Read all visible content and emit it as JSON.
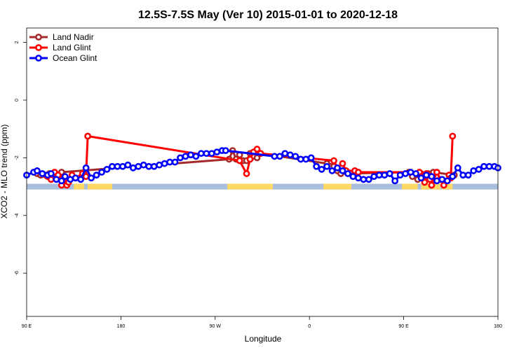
{
  "chart_data": {
    "type": "line",
    "title": "12.5S-7.5S May (Ver 10)   2015-01-01 to 2020-12-18",
    "xlabel": "Longitude",
    "ylabel": "XCO2 - MLO trend (ppm)",
    "xlim": [
      -90,
      180
    ],
    "ylim": [
      -7.5,
      2.5
    ],
    "x_ticks": [
      {
        "value": -90,
        "label": "90 E"
      },
      {
        "value": -36,
        "label": "180"
      },
      {
        "value": 18,
        "label": "90 W"
      },
      {
        "value": 72,
        "label": "0"
      },
      {
        "value": 126,
        "label": "90 E"
      },
      {
        "value": 180,
        "label": "180"
      }
    ],
    "y_ticks": [
      {
        "value": 2,
        "label": "2"
      },
      {
        "value": 0,
        "label": "0"
      },
      {
        "value": -2,
        "label": "-2"
      },
      {
        "value": -4,
        "label": "-4"
      },
      {
        "value": -6,
        "label": "-6"
      }
    ],
    "land_band": {
      "y_range": [
        -3.1,
        -2.9
      ],
      "ocean_color": "#a9bfdb",
      "land_color": "#ffd966",
      "land_segments": [
        [
          25,
          51
        ],
        [
          80,
          96
        ],
        [
          -63,
          -57
        ],
        [
          -55,
          -50
        ],
        [
          -52,
          -44
        ],
        [
          -46,
          -41
        ],
        [
          125,
          134
        ],
        [
          136,
          141
        ],
        [
          142,
          147
        ],
        [
          148,
          154
        ]
      ]
    },
    "series": [
      {
        "name": "Land Nadir",
        "color": "#a52a2a",
        "x": [
          -84,
          -82,
          -79,
          -77,
          -70,
          26,
          28,
          30,
          32,
          34,
          36,
          38,
          39,
          40,
          42,
          44,
          82,
          84,
          86,
          88,
          90,
          129,
          131,
          134,
          136,
          140,
          143,
          155
        ],
        "y": [
          -2.55,
          -2.6,
          -2.6,
          -2.55,
          -2.5,
          -2.05,
          -1.75,
          -2.05,
          -1.9,
          -2.1,
          -2.1,
          -1.85,
          -1.9,
          -1.95,
          -2.0,
          -1.85,
          -2.2,
          -2.3,
          -2.3,
          -2.45,
          -2.55,
          -2.5,
          -2.65,
          -2.75,
          -2.55,
          -2.55,
          -2.5,
          -2.6
        ]
      },
      {
        "name": "Land Glint",
        "color": "#ff0000",
        "x": [
          -78,
          -76,
          -74,
          -73,
          -72,
          -70,
          -69,
          -67,
          -66,
          -64,
          -62,
          -58,
          -56,
          -55,
          32,
          36,
          38,
          40,
          42,
          44,
          86,
          88,
          91,
          93,
          98,
          100,
          135,
          136,
          138,
          139,
          141,
          142,
          145,
          147,
          149,
          152,
          153,
          154
        ],
        "y": [
          -2.65,
          -2.75,
          -2.5,
          -2.7,
          -2.6,
          -2.95,
          -2.7,
          -2.95,
          -2.85,
          -2.6,
          -2.7,
          -2.55,
          -2.65,
          -1.25,
          -2.1,
          -2.55,
          -2.05,
          -1.8,
          -1.7,
          -1.85,
          -2.1,
          -2.35,
          -2.2,
          -2.45,
          -2.45,
          -2.5,
          -2.5,
          -2.65,
          -2.85,
          -2.55,
          -2.75,
          -2.95,
          -2.5,
          -2.75,
          -2.95,
          -2.6,
          -2.7,
          -1.25
        ]
      },
      {
        "name": "Ocean Glint",
        "color": "#0000ff",
        "x": [
          -90,
          -86,
          -84,
          -81,
          -78,
          -76,
          -73,
          -70,
          -68,
          -65,
          -62,
          -59,
          -56,
          -53,
          -50,
          -47,
          -44,
          -41,
          -38,
          -35,
          -32,
          -29,
          -26,
          -23,
          -20,
          -17,
          -14,
          -11,
          -8,
          -5,
          -2,
          1,
          4,
          7,
          10,
          13,
          16,
          19,
          22,
          24,
          52,
          55,
          58,
          61,
          64,
          67,
          70,
          73,
          76,
          79,
          82,
          85,
          88,
          91,
          94,
          97,
          100,
          103,
          106,
          109,
          112,
          115,
          118,
          121,
          124,
          127,
          130,
          133,
          136,
          139,
          142,
          145,
          148,
          151,
          154,
          157,
          160,
          163,
          166,
          169,
          172,
          175,
          178,
          180
        ],
        "y": [
          -2.6,
          -2.5,
          -2.45,
          -2.55,
          -2.6,
          -2.55,
          -2.75,
          -2.8,
          -2.65,
          -2.75,
          -2.7,
          -2.75,
          -2.35,
          -2.7,
          -2.6,
          -2.5,
          -2.4,
          -2.3,
          -2.3,
          -2.3,
          -2.25,
          -2.35,
          -2.3,
          -2.25,
          -2.3,
          -2.3,
          -2.25,
          -2.2,
          -2.15,
          -2.15,
          -2.0,
          -1.95,
          -1.9,
          -1.95,
          -1.85,
          -1.85,
          -1.85,
          -1.8,
          -1.75,
          -1.75,
          -1.95,
          -1.95,
          -1.85,
          -1.9,
          -1.95,
          -2.05,
          -2.05,
          -2.0,
          -2.3,
          -2.4,
          -2.3,
          -2.45,
          -2.35,
          -2.45,
          -2.55,
          -2.65,
          -2.7,
          -2.75,
          -2.75,
          -2.65,
          -2.6,
          -2.6,
          -2.55,
          -2.8,
          -2.6,
          -2.55,
          -2.5,
          -2.55,
          -2.7,
          -2.6,
          -2.65,
          -2.8,
          -2.75,
          -2.8,
          -2.65,
          -2.35,
          -2.6,
          -2.6,
          -2.45,
          -2.4,
          -2.3,
          -2.3,
          -2.3,
          -2.35
        ]
      }
    ],
    "legend": {
      "position": "top-left"
    }
  }
}
